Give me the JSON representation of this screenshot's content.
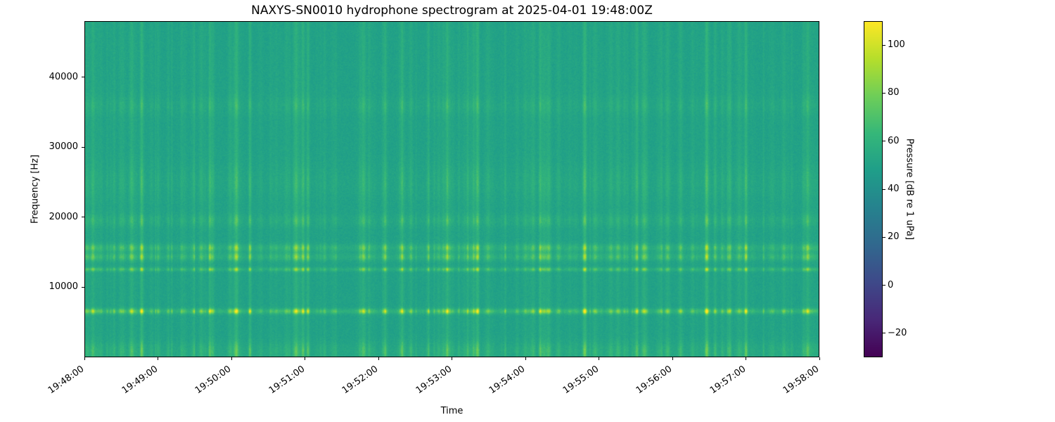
{
  "chart_data": {
    "type": "heatmap",
    "subtype": "spectrogram",
    "title": "NAXYS-SN0010 hydrophone spectrogram at 2025-04-01 19:48:00Z",
    "xlabel": "Time",
    "ylabel": "Frequency [Hz]",
    "colorbar_label": "Pressure [dB re 1 uPa]",
    "colormap": "viridis",
    "x_range_seconds": [
      0,
      600
    ],
    "x_ticks": [
      {
        "label": "19:48:00",
        "seconds": 0
      },
      {
        "label": "19:49:00",
        "seconds": 60
      },
      {
        "label": "19:50:00",
        "seconds": 120
      },
      {
        "label": "19:51:00",
        "seconds": 180
      },
      {
        "label": "19:52:00",
        "seconds": 240
      },
      {
        "label": "19:53:00",
        "seconds": 300
      },
      {
        "label": "19:54:00",
        "seconds": 360
      },
      {
        "label": "19:55:00",
        "seconds": 420
      },
      {
        "label": "19:56:00",
        "seconds": 480
      },
      {
        "label": "19:57:00",
        "seconds": 540
      },
      {
        "label": "19:58:00",
        "seconds": 600
      }
    ],
    "y_range_hz": [
      0,
      48000
    ],
    "y_ticks": [
      {
        "label": "10000",
        "value": 10000
      },
      {
        "label": "20000",
        "value": 20000
      },
      {
        "label": "30000",
        "value": 30000
      },
      {
        "label": "40000",
        "value": 40000
      }
    ],
    "colorbar_range_db": [
      -30,
      110
    ],
    "colorbar_ticks": [
      {
        "label": "100",
        "value": 100
      },
      {
        "label": "80",
        "value": 80
      },
      {
        "label": "60",
        "value": 60
      },
      {
        "label": "40",
        "value": 40
      },
      {
        "label": "20",
        "value": 20
      },
      {
        "label": "0",
        "value": 0
      },
      {
        "label": "−20",
        "value": -20
      }
    ],
    "background_level_db": 50,
    "horizontal_bands": [
      {
        "center_hz": 800,
        "half_width_hz": 1300,
        "peak_db": 60
      },
      {
        "center_hz": 6500,
        "half_width_hz": 380,
        "peak_db": 80
      },
      {
        "center_hz": 12500,
        "half_width_hz": 280,
        "peak_db": 70
      },
      {
        "center_hz": 14300,
        "half_width_hz": 550,
        "peak_db": 68
      },
      {
        "center_hz": 15600,
        "half_width_hz": 550,
        "peak_db": 68
      },
      {
        "center_hz": 19500,
        "half_width_hz": 900,
        "peak_db": 58
      },
      {
        "center_hz": 25000,
        "half_width_hz": 2500,
        "peak_db": 55
      },
      {
        "center_hz": 36000,
        "half_width_hz": 1300,
        "peak_db": 55
      }
    ],
    "vertical_streak_count": 300,
    "strong_streaks_seconds": [
      46,
      178,
      182,
      321,
      409,
      508
    ],
    "noise_seed": 42
  }
}
